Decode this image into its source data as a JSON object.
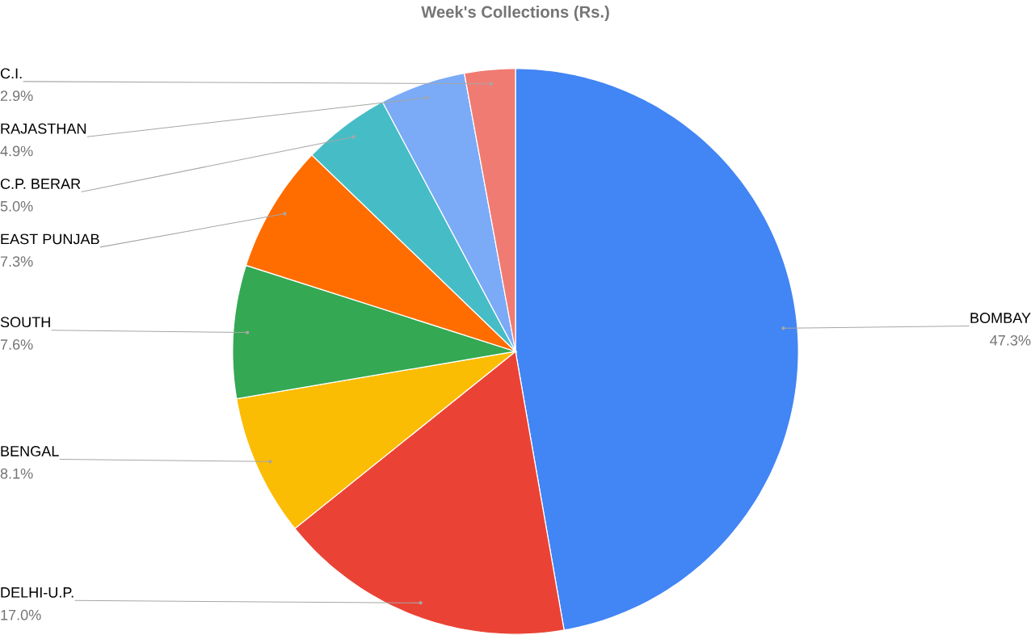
{
  "chart_data": {
    "type": "pie",
    "title": "Week's Collections (Rs.)",
    "categories": [
      "BOMBAY",
      "DELHI-U.P.",
      "BENGAL",
      "SOUTH",
      "EAST PUNJAB",
      "C.P. BERAR",
      "RAJASTHAN",
      "C.I."
    ],
    "values": [
      47.3,
      17.0,
      8.1,
      7.6,
      7.3,
      5.0,
      4.9,
      2.9
    ],
    "value_labels": [
      "47.3%",
      "17.0%",
      "8.1%",
      "7.6%",
      "7.3%",
      "5.0%",
      "4.9%",
      "2.9%"
    ],
    "colors": [
      "#4285f4",
      "#ea4335",
      "#fbbc04",
      "#34a853",
      "#ff6d01",
      "#46bdc6",
      "#7baaf7",
      "#f07b72"
    ]
  }
}
